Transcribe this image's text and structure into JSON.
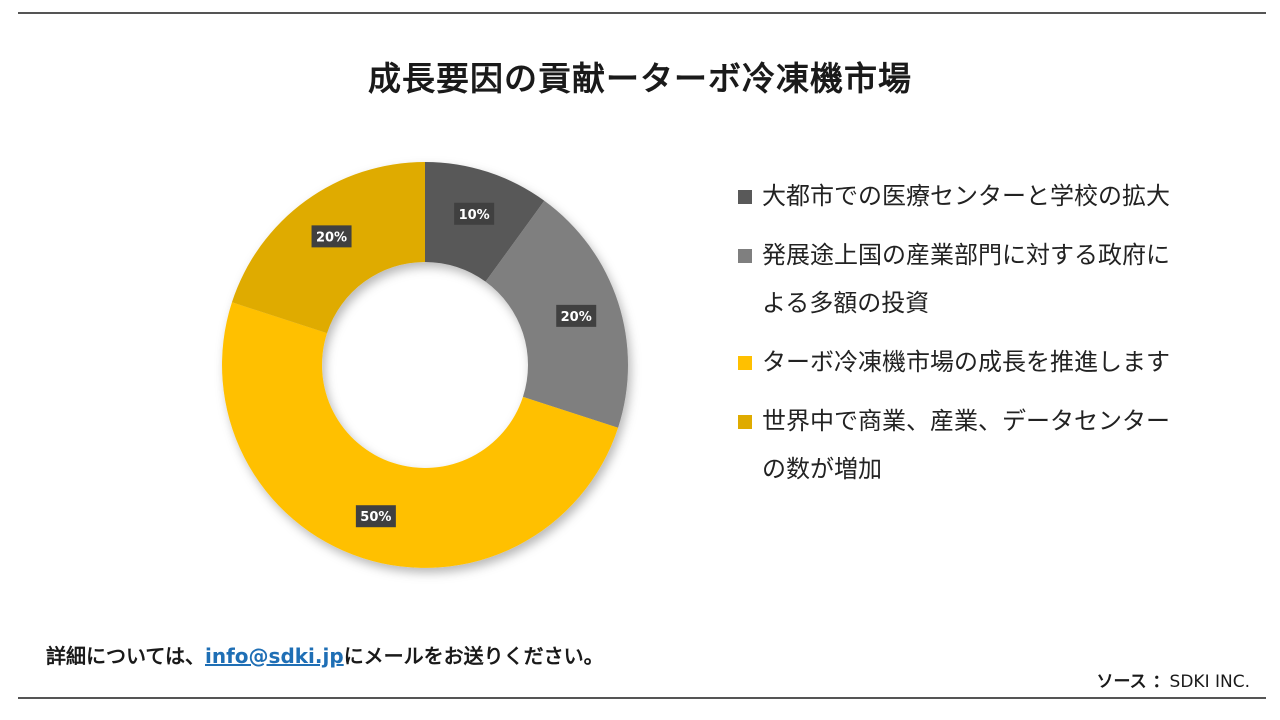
{
  "title": "成長要因の貢献ーターボ冷凍機市場",
  "chart_data": {
    "type": "pie",
    "donut": true,
    "title": "成長要因の貢献ーターボ冷凍機市場",
    "legend_position": "right",
    "slices": [
      {
        "name": "大都市での医療センターと学校の拡大",
        "value": 10,
        "label": "10%",
        "color": "#595959"
      },
      {
        "name": "発展途上国の産業部門に対する政府による多額の投資",
        "value": 20,
        "label": "20%",
        "color": "#7f7f7f"
      },
      {
        "name": "ターボ冷凍機市場の成長を推進します",
        "value": 50,
        "label": "50%",
        "color": "#ffc000"
      },
      {
        "name": "世界中で商業、産業、データセンターの数が増加",
        "value": 20,
        "label": "20%",
        "color": "#dfab00"
      }
    ]
  },
  "footer": {
    "note_before": "詳細については、",
    "email": "info@sdki.jp",
    "note_after": "にメールをお送りください。"
  },
  "source": {
    "label": "ソース ：",
    "value": "SDKI INC."
  }
}
